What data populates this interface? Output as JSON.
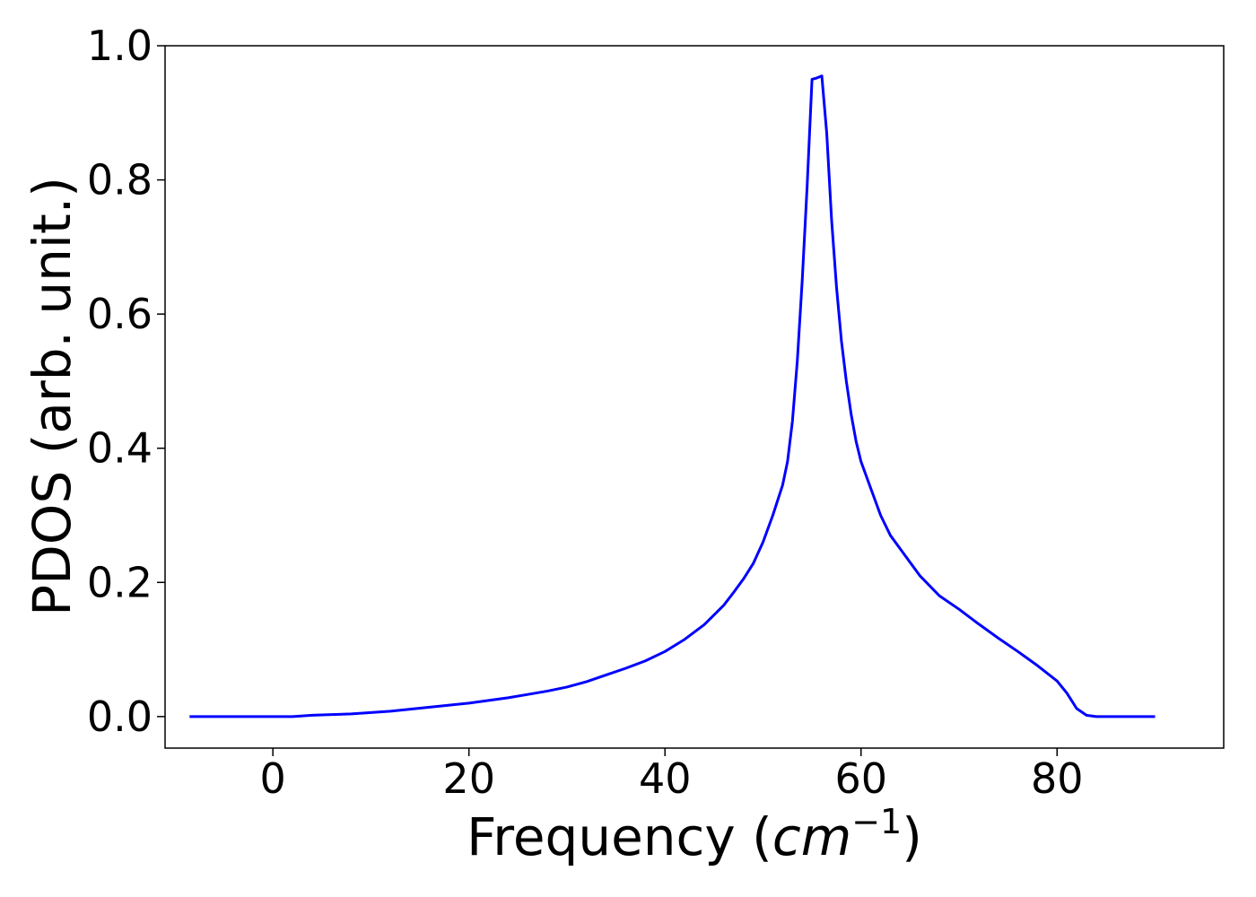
{
  "chart_data": {
    "type": "line",
    "title": "",
    "xlabel": "Frequency (cm⁻¹)",
    "xlabel_parts": {
      "prefix": "Frequency (",
      "unit_base": "cm",
      "unit_exp": "−1",
      "suffix": ")"
    },
    "ylabel": "PDOS (arb. unit.)",
    "xlim": [
      -11,
      97
    ],
    "ylim": [
      -0.047,
      1.0
    ],
    "xticks": [
      0,
      20,
      40,
      60,
      80
    ],
    "xtick_labels": [
      "0",
      "20",
      "40",
      "60",
      "80"
    ],
    "yticks": [
      0.0,
      0.2,
      0.4,
      0.6,
      0.8,
      1.0
    ],
    "ytick_labels": [
      "0.0",
      "0.2",
      "0.4",
      "0.6",
      "0.8",
      "1.0"
    ],
    "grid": false,
    "legend": "none",
    "line_color": "#0000ff",
    "series": [
      {
        "x": [
          -8.5,
          -4,
          0,
          2,
          4,
          6,
          8,
          10,
          12,
          14,
          16,
          18,
          20,
          22,
          24,
          26,
          28,
          30,
          32,
          34,
          36,
          38,
          40,
          42,
          44,
          46,
          47,
          48,
          49,
          50,
          51,
          52,
          52.5,
          53,
          53.5,
          54,
          54.5,
          55,
          55.5,
          56,
          56.5,
          57,
          57.5,
          58,
          58.5,
          59,
          59.5,
          60,
          61,
          62,
          63,
          64,
          65,
          66,
          68,
          70,
          72,
          74,
          76,
          78,
          80,
          81,
          82,
          83,
          84,
          86,
          88,
          90
        ],
        "y": [
          0.0,
          0.0,
          0.0,
          0.0,
          0.002,
          0.003,
          0.004,
          0.006,
          0.008,
          0.011,
          0.014,
          0.017,
          0.02,
          0.024,
          0.028,
          0.033,
          0.038,
          0.044,
          0.052,
          0.062,
          0.072,
          0.083,
          0.097,
          0.115,
          0.137,
          0.166,
          0.185,
          0.205,
          0.228,
          0.26,
          0.3,
          0.345,
          0.38,
          0.44,
          0.53,
          0.65,
          0.79,
          0.95,
          0.952,
          0.955,
          0.87,
          0.74,
          0.64,
          0.56,
          0.5,
          0.45,
          0.41,
          0.38,
          0.34,
          0.3,
          0.27,
          0.25,
          0.23,
          0.21,
          0.18,
          0.16,
          0.138,
          0.117,
          0.097,
          0.076,
          0.053,
          0.035,
          0.012,
          0.002,
          0.0,
          0.0,
          0.0,
          0.0
        ]
      }
    ]
  }
}
